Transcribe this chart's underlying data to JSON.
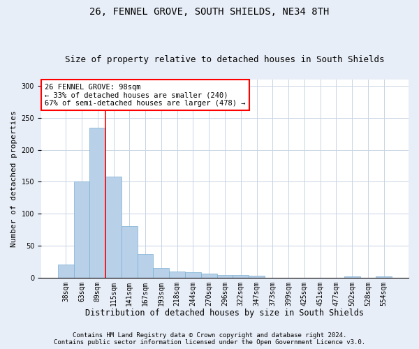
{
  "title": "26, FENNEL GROVE, SOUTH SHIELDS, NE34 8TH",
  "subtitle": "Size of property relative to detached houses in South Shields",
  "xlabel": "Distribution of detached houses by size in South Shields",
  "ylabel": "Number of detached properties",
  "footer_line1": "Contains HM Land Registry data © Crown copyright and database right 2024.",
  "footer_line2": "Contains public sector information licensed under the Open Government Licence v3.0.",
  "categories": [
    "38sqm",
    "63sqm",
    "89sqm",
    "115sqm",
    "141sqm",
    "167sqm",
    "193sqm",
    "218sqm",
    "244sqm",
    "270sqm",
    "296sqm",
    "322sqm",
    "347sqm",
    "373sqm",
    "399sqm",
    "425sqm",
    "451sqm",
    "477sqm",
    "502sqm",
    "528sqm",
    "554sqm"
  ],
  "bar_values": [
    20,
    151,
    235,
    158,
    81,
    37,
    15,
    9,
    8,
    6,
    4,
    4,
    3,
    0,
    0,
    0,
    0,
    0,
    2,
    0,
    2
  ],
  "bar_color": "#b8d0e8",
  "bar_edge_color": "#7aafd4",
  "vline_x_index": 2,
  "vline_color": "red",
  "annotation_text": "26 FENNEL GROVE: 98sqm\n← 33% of detached houses are smaller (240)\n67% of semi-detached houses are larger (478) →",
  "annotation_box_color": "white",
  "annotation_box_edge_color": "red",
  "ylim": [
    0,
    310
  ],
  "yticks": [
    0,
    50,
    100,
    150,
    200,
    250,
    300
  ],
  "background_color": "#e8eef7",
  "plot_background_color": "#ffffff",
  "grid_color": "#c8d4e4",
  "title_fontsize": 10,
  "subtitle_fontsize": 9,
  "ylabel_fontsize": 8,
  "xlabel_fontsize": 8.5,
  "tick_fontsize": 7,
  "annotation_fontsize": 7.5,
  "footer_fontsize": 6.5
}
